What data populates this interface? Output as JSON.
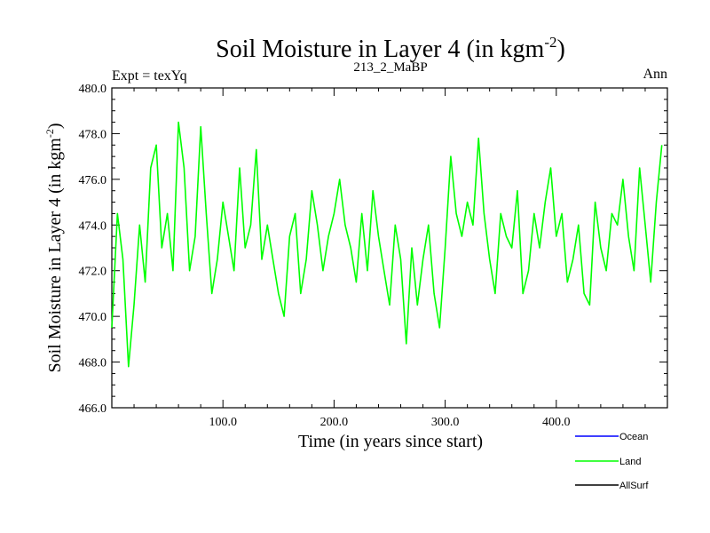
{
  "chart_data": {
    "type": "line",
    "title": "Soil Moisture in Layer 4 (in kgm",
    "title_superscript": "-2",
    "title_suffix": ")",
    "subtitle_left": "Expt = texYq",
    "subtitle_center": "213_2_MaBP",
    "subtitle_right": "Ann",
    "xlabel": "Time (in years since start)",
    "ylabel": "Soil Moisture in Layer 4 (in kgm",
    "ylabel_superscript": "-2",
    "ylabel_suffix": ")",
    "xlim": [
      0,
      500
    ],
    "ylim": [
      466,
      480
    ],
    "x_ticks": [
      100,
      200,
      300,
      400
    ],
    "x_tick_labels": [
      "100.0",
      "200.0",
      "300.0",
      "400.0"
    ],
    "y_ticks": [
      466,
      468,
      470,
      472,
      474,
      476,
      478,
      480
    ],
    "y_tick_labels": [
      "466.0",
      "468.0",
      "470.0",
      "472.0",
      "474.0",
      "476.0",
      "478.0",
      "480.0"
    ],
    "legend_position": "bottom-right",
    "legend": [
      {
        "name": "Ocean",
        "color": "#0000ff"
      },
      {
        "name": "Land",
        "color": "#00ff00"
      },
      {
        "name": "AllSurf",
        "color": "#000000"
      }
    ],
    "series": [
      {
        "name": "Land",
        "color": "#00ff00",
        "x": [
          0,
          5,
          10,
          15,
          20,
          25,
          30,
          35,
          40,
          45,
          50,
          55,
          60,
          65,
          70,
          75,
          80,
          85,
          90,
          95,
          100,
          105,
          110,
          115,
          120,
          125,
          130,
          135,
          140,
          145,
          150,
          155,
          160,
          165,
          170,
          175,
          180,
          185,
          190,
          195,
          200,
          205,
          210,
          215,
          220,
          225,
          230,
          235,
          240,
          245,
          250,
          255,
          260,
          265,
          270,
          275,
          280,
          285,
          290,
          295,
          300,
          305,
          310,
          315,
          320,
          325,
          330,
          335,
          340,
          345,
          350,
          355,
          360,
          365,
          370,
          375,
          380,
          385,
          390,
          395,
          400,
          405,
          410,
          415,
          420,
          425,
          430,
          435,
          440,
          445,
          450,
          455,
          460,
          465,
          470,
          475,
          480,
          485,
          490,
          495
        ],
        "y": [
          469.5,
          474.5,
          472.5,
          467.8,
          470.5,
          474.0,
          471.5,
          476.5,
          477.5,
          473.0,
          474.5,
          472.0,
          478.5,
          476.5,
          472.0,
          473.5,
          478.3,
          474.5,
          471.0,
          472.5,
          475.0,
          473.5,
          472.0,
          476.5,
          473.0,
          474.0,
          477.3,
          472.5,
          474.0,
          472.5,
          471.0,
          470.0,
          473.5,
          474.5,
          471.0,
          472.5,
          475.5,
          474.0,
          472.0,
          473.5,
          474.5,
          476.0,
          474.0,
          473.0,
          471.5,
          474.5,
          472.0,
          475.5,
          473.5,
          472.0,
          470.5,
          474.0,
          472.5,
          468.8,
          473.0,
          470.5,
          472.5,
          474.0,
          471.0,
          469.5,
          473.0,
          477.0,
          474.5,
          473.5,
          475.0,
          474.0,
          477.8,
          474.5,
          472.5,
          471.0,
          474.5,
          473.5,
          473.0,
          475.5,
          471.0,
          472.0,
          474.5,
          473.0,
          475.0,
          476.5,
          473.5,
          474.5,
          471.5,
          472.5,
          474.0,
          471.0,
          470.5,
          475.0,
          473.0,
          472.0,
          474.5,
          474.0,
          476.0,
          473.5,
          472.0,
          476.5,
          474.0,
          471.5,
          475.0,
          477.5
        ]
      }
    ]
  }
}
